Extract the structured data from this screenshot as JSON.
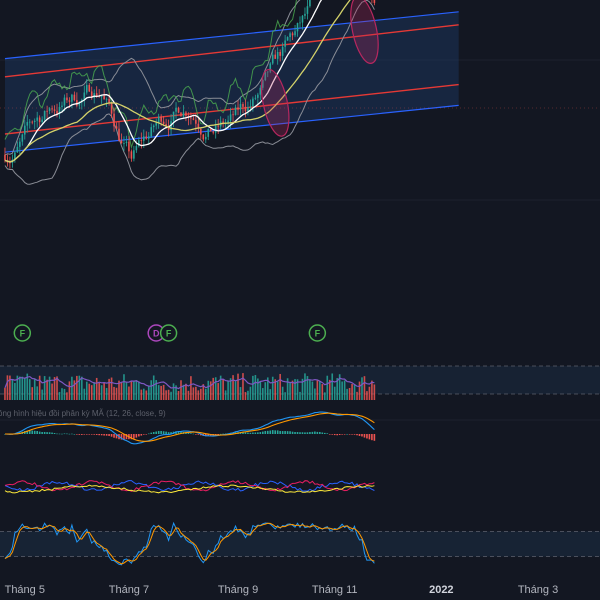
{
  "colors": {
    "background": "#131722",
    "grid": "#1e222d",
    "up": "#26a69a",
    "down": "#ef5350",
    "channel": "#2962ff",
    "channel_fill": "#1c3a66",
    "regression": "#e53935",
    "ma_fast": "#ffffff",
    "ma_slow": "#d4d26a",
    "bollinger": "#8a8d96",
    "green_line": "#4caf50",
    "ellipse": "#b7275f",
    "dividend": "#ab47bc",
    "earnings": "#4caf50",
    "band_fill": "#1c2d44",
    "volume_avg": "#7e57c2",
    "macd_line": "#2196f3",
    "signal_line": "#ff9800",
    "stoch_k": "#2196f3",
    "stoch_d": "#ff9800",
    "vortex_plus": "#2962ff",
    "vortex_minus": "#e91e63",
    "vortex_third": "#ffeb3b"
  },
  "time_axis": {
    "labels": [
      {
        "text": "Tháng 5",
        "index": 8,
        "year": false
      },
      {
        "text": "Tháng 7",
        "index": 50,
        "year": false
      },
      {
        "text": "Tháng 9",
        "index": 94,
        "year": false
      },
      {
        "text": "Tháng 11",
        "index": 133,
        "year": false
      },
      {
        "text": "2022",
        "index": 176,
        "year": true
      },
      {
        "text": "Tháng 3",
        "index": 215,
        "year": false
      }
    ]
  },
  "events": [
    {
      "letter": "F",
      "index": 7,
      "type": "earnings"
    },
    {
      "letter": "D",
      "index": 61,
      "type": "dividend"
    },
    {
      "letter": "F",
      "index": 66,
      "type": "earnings"
    },
    {
      "letter": "F",
      "index": 126,
      "type": "earnings"
    }
  ],
  "macd_label": "ông hình hiệu đồi phân kỳ MÃ (12, 26, close, 9)",
  "chart_data": {
    "type": "candlestick",
    "title": "",
    "xlabel": "",
    "ylabel": "",
    "x_range": [
      -2,
      240
    ],
    "y_range": [
      0,
      100
    ],
    "bars": 150,
    "start_price": 52,
    "channel": {
      "x": [
        0,
        183
      ],
      "upper": [
        89,
        107
      ],
      "lower": [
        53,
        71
      ]
    },
    "regression": {
      "x": [
        0,
        183
      ],
      "upper": [
        82,
        102
      ],
      "lower": [
        60,
        79
      ]
    },
    "ellipses": [
      {
        "index": 109,
        "price": 72
      },
      {
        "index": 145,
        "price": 100
      }
    ],
    "volume_range": [
      0,
      40
    ],
    "stoch_levels": [
      80,
      20
    ]
  }
}
